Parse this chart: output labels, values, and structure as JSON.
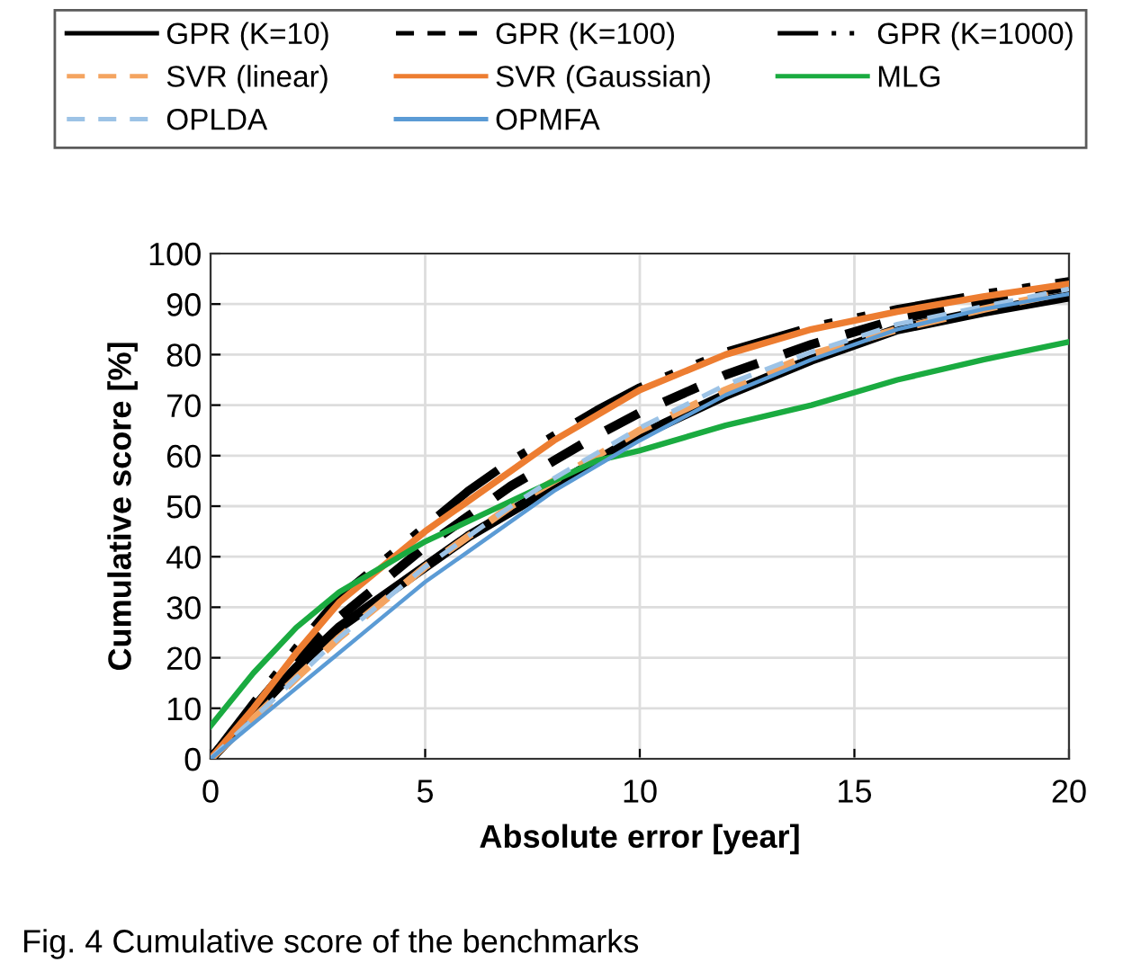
{
  "chart_data": {
    "type": "line",
    "xlabel": "Absolute error [year]",
    "ylabel": "Cumulative score [%]",
    "x": [
      0,
      1,
      2,
      3,
      4,
      5,
      6,
      7,
      8,
      9,
      10,
      12,
      14,
      16,
      18,
      20
    ],
    "series": [
      {
        "name": "GPR (K=10)",
        "color": "#000000",
        "line_style": "solid",
        "values": [
          0,
          9,
          18,
          26,
          32,
          38,
          44,
          49,
          54,
          59,
          64,
          72,
          79,
          85,
          88.5,
          91.5
        ]
      },
      {
        "name": "GPR (K=100)",
        "color": "#000000",
        "line_style": "dashed",
        "values": [
          0,
          10,
          20,
          28,
          35,
          42,
          48,
          54,
          59,
          64,
          68.5,
          76,
          82,
          87,
          90.5,
          93.5
        ]
      },
      {
        "name": "GPR (K=1000)",
        "color": "#000000",
        "line_style": "dashdotdot",
        "values": [
          0,
          11,
          22,
          32,
          39,
          46,
          53,
          59,
          64,
          69,
          73.5,
          80.5,
          85.5,
          89,
          92,
          94.5
        ]
      },
      {
        "name": "SVR (linear)",
        "color": "#f4a460",
        "line_style": "dashed",
        "values": [
          0,
          8,
          16,
          24,
          31,
          38,
          44,
          50,
          55,
          60,
          65,
          73,
          80,
          85,
          89,
          92.5
        ]
      },
      {
        "name": "SVR (Gaussian)",
        "color": "#ed7d31",
        "line_style": "solid",
        "values": [
          0,
          10,
          21,
          31,
          38,
          45,
          51,
          57,
          63,
          68,
          73,
          80,
          85,
          88.5,
          91.5,
          94
        ]
      },
      {
        "name": "MLG",
        "color": "#1aab40",
        "line_style": "solid",
        "values": [
          6.5,
          17,
          26,
          33,
          38,
          43,
          47,
          51,
          55,
          59,
          61,
          66,
          70,
          75,
          79,
          82.5
        ]
      },
      {
        "name": "OPLDA",
        "color": "#9dc3e6",
        "line_style": "dashed",
        "values": [
          0,
          8,
          16,
          24,
          31,
          38,
          44,
          50,
          55.5,
          60.5,
          65.5,
          74,
          80.5,
          86,
          89.5,
          93
        ]
      },
      {
        "name": "OPMFA",
        "color": "#5b9bd5",
        "line_style": "solid",
        "values": [
          0,
          7,
          14,
          21,
          28,
          35,
          41,
          47,
          53,
          58,
          63,
          72,
          79,
          85,
          89,
          92
        ]
      }
    ],
    "xlim": [
      0,
      20
    ],
    "xticks": [
      0,
      5,
      10,
      15,
      20
    ],
    "ylim": [
      0,
      100
    ],
    "yticks": [
      0,
      10,
      20,
      30,
      40,
      50,
      60,
      70,
      80,
      90,
      100
    ],
    "grid": true,
    "legend": "top",
    "marker": "none",
    "annotations": [
      "Fig. 4 Cumulative score of the benchmarks"
    ]
  }
}
